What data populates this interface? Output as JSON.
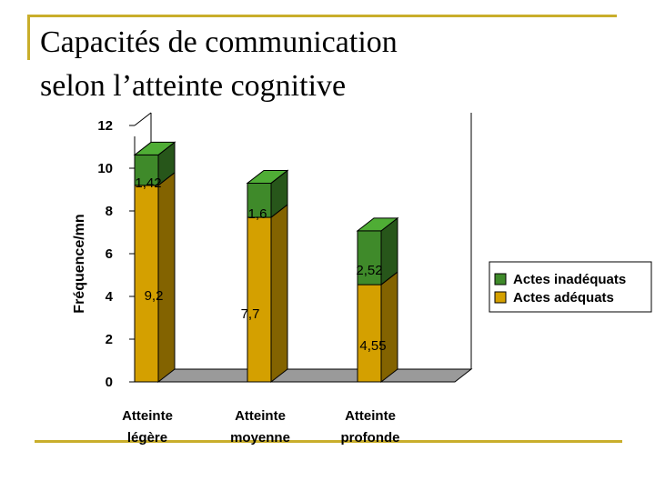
{
  "slide": {
    "title_line1": "Capacités de communication",
    "title_line2": "selon l’atteinte cognitive"
  },
  "colors": {
    "adequate": "#d4a000",
    "inadequate": "#3f8a2a",
    "rule": "#c9ae2b"
  },
  "chart_data": {
    "type": "bar",
    "stacked": true,
    "three_d": true,
    "title": "",
    "xlabel": "",
    "ylabel": "Fréquence/mn",
    "ylim": [
      0,
      12
    ],
    "yticks": [
      0,
      2,
      4,
      6,
      8,
      10,
      12
    ],
    "categories": [
      {
        "line1": "Atteinte",
        "line2": "légère"
      },
      {
        "line1": "Atteinte",
        "line2": "moyenne"
      },
      {
        "line1": "Atteinte",
        "line2": "profonde"
      }
    ],
    "series": [
      {
        "name": "Actes adéquats",
        "values": [
          9.2,
          7.7,
          4.55
        ],
        "labels": [
          "9,2",
          "7,7",
          "4,55"
        ]
      },
      {
        "name": "Actes inadéquats",
        "values": [
          1.42,
          1.6,
          2.52
        ],
        "labels": [
          "1,42",
          "1,6",
          "2,52"
        ]
      }
    ],
    "legend": {
      "position": "right",
      "entries": [
        "Actes inadéquats",
        "Actes adéquats"
      ]
    }
  }
}
